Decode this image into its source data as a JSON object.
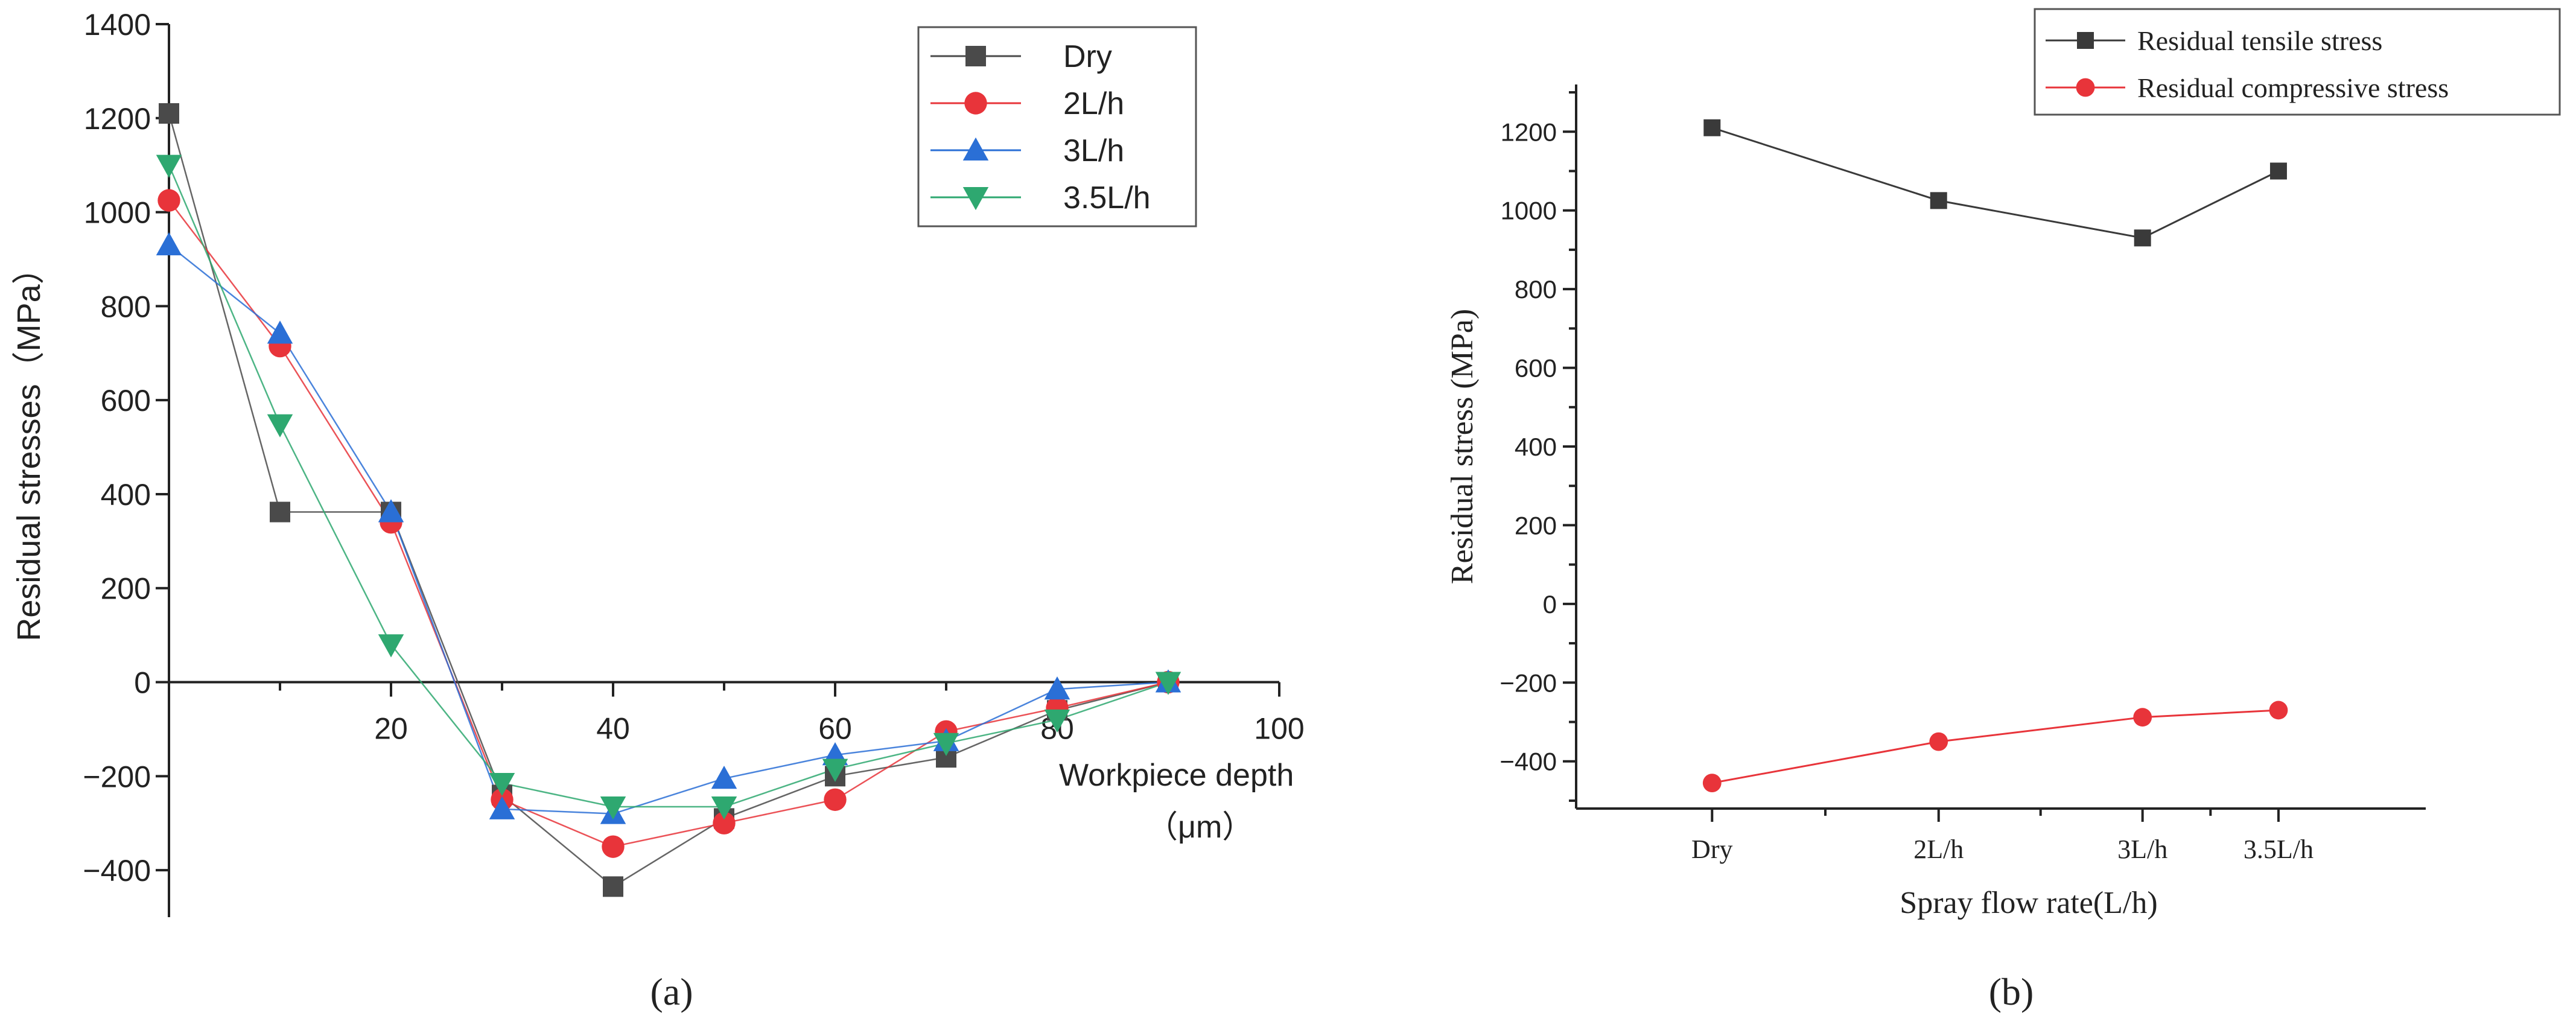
{
  "chart_data": [
    {
      "panel": "a",
      "type": "line",
      "title": "",
      "caption": "(a)",
      "xlabel_line1": "Workpiece depth",
      "xlabel_line2": "（μm）",
      "ylabel": "Residual stresses（MPa）",
      "xlim": [
        0,
        100
      ],
      "ylim": [
        -500,
        1400
      ],
      "x_ticks": [
        20,
        40,
        60,
        80,
        100
      ],
      "y_ticks": [
        -400,
        -200,
        0,
        200,
        400,
        600,
        800,
        1000,
        1200,
        1400
      ],
      "grid": false,
      "legend_position": "top-right",
      "x": [
        0,
        10,
        20,
        30,
        40,
        50,
        60,
        70,
        80,
        90
      ],
      "series": [
        {
          "name": "Dry",
          "marker": "square",
          "color": "#4a4a4a",
          "values": [
            1210,
            362,
            362,
            -240,
            -435,
            -290,
            -200,
            -160,
            -60,
            0
          ]
        },
        {
          "name": "2L/h",
          "marker": "circle",
          "color": "#e8343a",
          "values": [
            1025,
            715,
            340,
            -250,
            -350,
            -300,
            -250,
            -105,
            -55,
            0
          ]
        },
        {
          "name": "3L/h",
          "marker": "triangle-up",
          "color": "#2a6fd6",
          "values": [
            930,
            742,
            362,
            -270,
            -280,
            -205,
            -155,
            -125,
            -15,
            0
          ]
        },
        {
          "name": "3.5L/h",
          "marker": "triangle-down",
          "color": "#2ea870",
          "values": [
            1100,
            548,
            80,
            -215,
            -265,
            -265,
            -185,
            -130,
            -80,
            0
          ]
        }
      ]
    },
    {
      "panel": "b",
      "type": "line",
      "title": "",
      "caption": "(b)",
      "xlabel": "Spray flow rate(L/h)",
      "ylabel": "Residual stress (MPa)",
      "categories": [
        "Dry",
        "2L/h",
        "3L/h",
        "3.5L/h"
      ],
      "x": [
        0,
        1,
        1.9,
        2.5
      ],
      "xlim": [
        -0.6,
        3.15
      ],
      "ylim": [
        -520,
        1320
      ],
      "y_ticks": [
        -400,
        -200,
        0,
        200,
        400,
        600,
        800,
        1000,
        1200
      ],
      "grid": false,
      "legend_position": "top-right",
      "series": [
        {
          "name": "Residual tensile stress",
          "marker": "square",
          "color": "#3a3a3a",
          "values": [
            1210,
            1025,
            930,
            1100
          ]
        },
        {
          "name": "Residual compressive stress",
          "marker": "circle",
          "color": "#e8343a",
          "values": [
            -455,
            -350,
            -288,
            -270
          ]
        }
      ]
    }
  ]
}
